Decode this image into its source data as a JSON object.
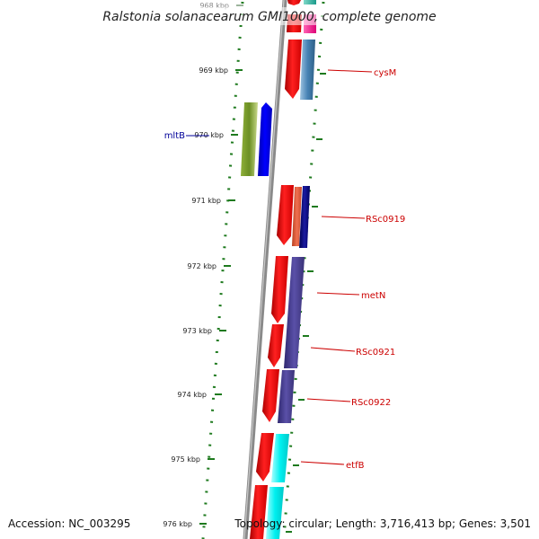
{
  "title": "Ralstonia solanacearum GMI1000, complete genome",
  "footer": {
    "accession": "Accession: NC_003295",
    "summary": "Topology: circular; Length: 3,716,413 bp; Genes: 3,501"
  },
  "ruler_labels": [
    "968 kbp",
    "969 kbp",
    "970 kbp",
    "971 kbp",
    "972 kbp",
    "973 kbp",
    "974 kbp",
    "975 kbp",
    "976 kbp"
  ],
  "gene_labels": [
    {
      "name": "cysM",
      "color": "#cc0000"
    },
    {
      "name": "mltB",
      "color": "#000099"
    },
    {
      "name": "RSc0919",
      "color": "#cc0000"
    },
    {
      "name": "metN",
      "color": "#cc0000"
    },
    {
      "name": "RSc0921",
      "color": "#cc0000"
    },
    {
      "name": "RSc0922",
      "color": "#cc0000"
    },
    {
      "name": "etfB",
      "color": "#cc0000"
    }
  ],
  "colors": {
    "backbone": "#8a8a8a",
    "ruler_tick": "#1e7a1e",
    "cds": "#ee0000",
    "steelblue": "#4682b4",
    "olive": "#6b8e23",
    "blue": "#0000ee",
    "salmon": "#e0603a",
    "navy": "#000080",
    "purple": "#483d8b",
    "cyan": "#00eeee",
    "magenta": "#ff1493",
    "teal": "#20b2aa"
  }
}
